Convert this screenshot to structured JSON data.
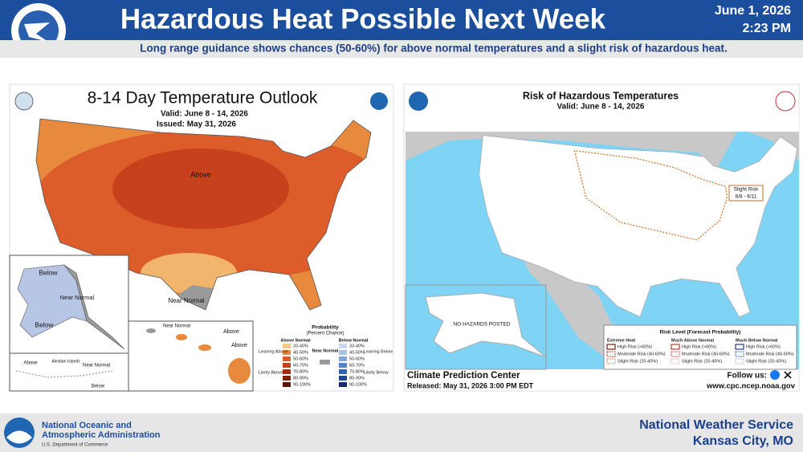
{
  "header": {
    "title": "Hazardous Heat Possible Next Week",
    "date": "June 1, 2026",
    "time": "2:23 PM",
    "subtitle": "Long range guidance shows chances (50-60%) for above normal temperatures and a slight risk of hazardous heat."
  },
  "left_panel": {
    "title": "8-14 Day Temperature Outlook",
    "valid": "Valid:  June 8 - 14, 2026",
    "issued": "Issued:  May 31, 2026",
    "map_labels": [
      "Above",
      "Near Normal",
      "Below",
      "Near Normal",
      "Below",
      "Above",
      "Aleutian Islands",
      "Near Normal",
      "Below",
      "Near Normal",
      "Above",
      "Above"
    ],
    "legend": {
      "title": "Probability",
      "subtitle": "(Percent Chance)",
      "above_title": "Above Normal",
      "near_title": "Near Normal",
      "below_title": "Below Normal",
      "levels": [
        "33-40%",
        "40-50%",
        "50-60%",
        "60-70%",
        "70-80%",
        "80-90%",
        "90-100%"
      ],
      "side_labels": [
        "Leaning Above",
        "Likely Above",
        "Leaning Below",
        "Likely Below"
      ]
    }
  },
  "right_panel": {
    "title": "Risk of Hazardous Temperatures",
    "valid": "Valid: June 8 - 14, 2026",
    "risk_box": [
      "Slight Risk",
      "6/8 - 6/11"
    ],
    "alaska_note": "NO HAZARDS POSTED",
    "legend": {
      "title": "Risk Level (Forecast Probability)",
      "columns": [
        {
          "name": "Extreme Heat",
          "items": [
            "High Risk (>60%)",
            "Moderate Risk (40-60%)",
            "Slight Risk (20-40%)"
          ]
        },
        {
          "name": "Much Above Normal",
          "items": [
            "High Risk (>60%)",
            "Moderate Risk (40-60%)",
            "Slight Risk (20-40%)"
          ]
        },
        {
          "name": "Much Below Normal",
          "items": [
            "High Risk (>60%)",
            "Moderate Risk (40-60%)",
            "Slight Risk (20-40%)"
          ]
        }
      ]
    },
    "source": "Climate Prediction Center",
    "released": "Released: May 31, 2026 3:00 PM EDT",
    "follow": "Follow us:",
    "url": "www.cpc.ncep.noaa.gov"
  },
  "footer": {
    "agency_line1": "National Oceanic and",
    "agency_line2": "Atmospheric Administration",
    "department": "U.S. Department of Commerce",
    "office": "National Weather Service",
    "location": "Kansas City, MO"
  }
}
